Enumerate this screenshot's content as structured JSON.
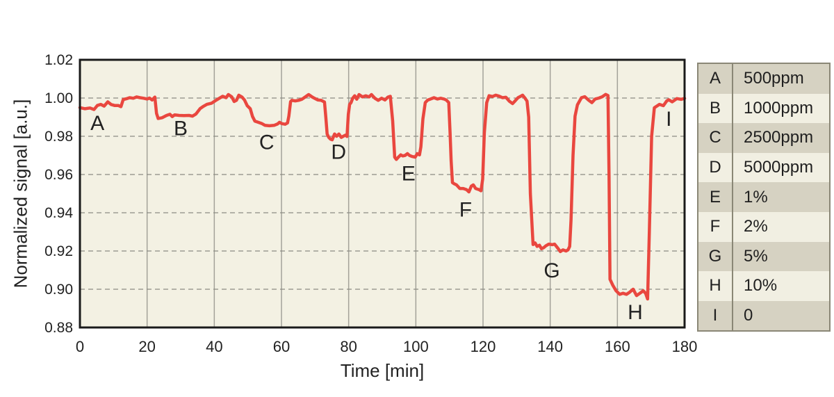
{
  "chart_data": {
    "type": "line",
    "title": "",
    "xlabel": "Time [min]",
    "ylabel": "Normalized signal [a.u.]",
    "xlim": [
      0,
      180
    ],
    "ylim": [
      0.88,
      1.02
    ],
    "xticks": [
      0,
      20,
      40,
      60,
      80,
      100,
      120,
      140,
      160,
      180
    ],
    "yticks": [
      "0.88",
      "0.90",
      "0.92",
      "0.94",
      "0.96",
      "0.98",
      "1.00",
      "1.02"
    ],
    "grid": {
      "vertical": "solid",
      "horizontal": "dashed"
    },
    "legend_position": "right-outside",
    "colors": {
      "plot_bg": "#f3f1e3",
      "line": "#e9473f",
      "grid_vertical": "#a3a299",
      "grid_horizontal": "#8b8b83",
      "axis": "#1a1a1a",
      "text": "#212121",
      "legend_row_dark": "#d6d2c2",
      "legend_row_light": "#f1efe2",
      "legend_border": "#8a8776"
    },
    "series": [
      {
        "name": "normalized-signal",
        "color": "#e9473f",
        "points": [
          [
            0,
            0.995
          ],
          [
            1.5,
            0.9944
          ],
          [
            3,
            0.9948
          ],
          [
            4.2,
            0.994
          ],
          [
            5.2,
            0.9961
          ],
          [
            6.2,
            0.9967
          ],
          [
            7.2,
            0.9958
          ],
          [
            8.3,
            0.998
          ],
          [
            9.3,
            0.9966
          ],
          [
            10.3,
            0.9961
          ],
          [
            11.4,
            0.9961
          ],
          [
            12.2,
            0.9955
          ],
          [
            12.9,
            0.9992
          ],
          [
            13.8,
            0.9996
          ],
          [
            14.8,
            1.0002
          ],
          [
            15.9,
            0.9999
          ],
          [
            16.9,
            1.0006
          ],
          [
            17.9,
            1.0002
          ],
          [
            19,
            0.9999
          ],
          [
            20,
            0.9995
          ],
          [
            20.7,
            1.0
          ],
          [
            21.5,
            0.999
          ],
          [
            22.3,
            1.0005
          ],
          [
            22.8,
            0.992
          ],
          [
            23.3,
            0.9893
          ],
          [
            24.5,
            0.9897
          ],
          [
            25.8,
            0.9909
          ],
          [
            26.8,
            0.9915
          ],
          [
            27.5,
            0.9903
          ],
          [
            28.2,
            0.9912
          ],
          [
            29.5,
            0.9909
          ],
          [
            31,
            0.9908
          ],
          [
            32.5,
            0.9909
          ],
          [
            33.5,
            0.9905
          ],
          [
            34.5,
            0.9916
          ],
          [
            35.8,
            0.9945
          ],
          [
            36.8,
            0.9957
          ],
          [
            37.8,
            0.9967
          ],
          [
            39.2,
            0.9973
          ],
          [
            40.5,
            0.9988
          ],
          [
            41.5,
            0.9999
          ],
          [
            42.5,
            1.0009
          ],
          [
            43.5,
            1.0002
          ],
          [
            44.2,
            1.0018
          ],
          [
            45.2,
            1.0006
          ],
          [
            45.9,
            0.9982
          ],
          [
            46.6,
            0.9988
          ],
          [
            47.3,
            1.0015
          ],
          [
            48.2,
            1.0006
          ],
          [
            49,
            0.999
          ],
          [
            49.8,
            0.996
          ],
          [
            50.7,
            0.9944
          ],
          [
            51.4,
            0.9903
          ],
          [
            52.1,
            0.9879
          ],
          [
            53.1,
            0.9873
          ],
          [
            54.1,
            0.9867
          ],
          [
            55.1,
            0.9857
          ],
          [
            56.4,
            0.9855
          ],
          [
            57.8,
            0.9857
          ],
          [
            58.8,
            0.9864
          ],
          [
            59.4,
            0.9873
          ],
          [
            60.1,
            0.9866
          ],
          [
            61.1,
            0.9863
          ],
          [
            61.8,
            0.987
          ],
          [
            62.2,
            0.9905
          ],
          [
            62.7,
            0.9981
          ],
          [
            63.1,
            0.9988
          ],
          [
            64.1,
            0.9985
          ],
          [
            65.1,
            0.9988
          ],
          [
            66.1,
            0.9994
          ],
          [
            67.1,
            1.0006
          ],
          [
            68.1,
            1.0018
          ],
          [
            69.1,
            1.0006
          ],
          [
            69.8,
            0.9999
          ],
          [
            70.8,
            0.999
          ],
          [
            71.8,
            0.9988
          ],
          [
            72.8,
            0.9979
          ],
          [
            73.2,
            0.99
          ],
          [
            73.6,
            0.9812
          ],
          [
            74.1,
            0.9794
          ],
          [
            74.6,
            0.9785
          ],
          [
            75.1,
            0.9782
          ],
          [
            75.8,
            0.9812
          ],
          [
            76.4,
            0.98
          ],
          [
            77.1,
            0.9812
          ],
          [
            77.8,
            0.9794
          ],
          [
            78.4,
            0.98
          ],
          [
            79.1,
            0.9806
          ],
          [
            79.5,
            0.9799
          ],
          [
            79.9,
            0.9915
          ],
          [
            80.3,
            0.9967
          ],
          [
            80.7,
            0.9976
          ],
          [
            81.2,
            0.9999
          ],
          [
            81.8,
            1.0012
          ],
          [
            82.4,
            0.9994
          ],
          [
            83.1,
            1.0018
          ],
          [
            84.1,
            1.0006
          ],
          [
            85.1,
            1.0012
          ],
          [
            86.1,
            1.0006
          ],
          [
            86.8,
            1.0018
          ],
          [
            87.8,
            0.9999
          ],
          [
            88.8,
            0.9988
          ],
          [
            89.8,
            0.9999
          ],
          [
            90.8,
            0.999
          ],
          [
            91.7,
            1.0005
          ],
          [
            92.4,
            1.0009
          ],
          [
            93.1,
            0.988
          ],
          [
            93.7,
            0.9691
          ],
          [
            94.2,
            0.9679
          ],
          [
            94.8,
            0.9691
          ],
          [
            95.5,
            0.9703
          ],
          [
            96.1,
            0.9697
          ],
          [
            96.8,
            0.97
          ],
          [
            97.5,
            0.9709
          ],
          [
            98.1,
            0.97
          ],
          [
            98.8,
            0.9695
          ],
          [
            99.8,
            0.9691
          ],
          [
            100.4,
            0.9709
          ],
          [
            101.1,
            0.9703
          ],
          [
            101.5,
            0.9745
          ],
          [
            102.1,
            0.9891
          ],
          [
            102.8,
            0.9976
          ],
          [
            103.5,
            0.9989
          ],
          [
            104.4,
            0.9995
          ],
          [
            105.4,
            1.0002
          ],
          [
            106.4,
            0.9995
          ],
          [
            107.4,
            0.9999
          ],
          [
            108.4,
            0.9995
          ],
          [
            109.1,
            0.9989
          ],
          [
            109.8,
            0.9976
          ],
          [
            110.2,
            0.9818
          ],
          [
            110.5,
            0.9673
          ],
          [
            110.9,
            0.9558
          ],
          [
            111.4,
            0.9552
          ],
          [
            112.1,
            0.9546
          ],
          [
            113.1,
            0.9527
          ],
          [
            114.1,
            0.9527
          ],
          [
            115.1,
            0.9521
          ],
          [
            115.8,
            0.9509
          ],
          [
            116.5,
            0.9539
          ],
          [
            117.1,
            0.9546
          ],
          [
            117.8,
            0.9527
          ],
          [
            118.8,
            0.9521
          ],
          [
            119.4,
            0.9515
          ],
          [
            119.9,
            0.9576
          ],
          [
            120.4,
            0.9818
          ],
          [
            121.1,
            0.9976
          ],
          [
            121.8,
            1.0012
          ],
          [
            122.8,
            1.0008
          ],
          [
            123.8,
            1.0015
          ],
          [
            124.8,
            1.001
          ],
          [
            125.8,
            1.0002
          ],
          [
            126.8,
            1.0004
          ],
          [
            127.8,
            0.9984
          ],
          [
            128.8,
            0.9971
          ],
          [
            129.5,
            0.9984
          ],
          [
            130.4,
            1.0002
          ],
          [
            131.1,
            1.0008
          ],
          [
            131.8,
            1.0015
          ],
          [
            132.4,
            1.0002
          ],
          [
            133.1,
            0.9984
          ],
          [
            133.6,
            0.99
          ],
          [
            134.1,
            0.95
          ],
          [
            134.9,
            0.9234
          ],
          [
            135.5,
            0.9242
          ],
          [
            136.1,
            0.9224
          ],
          [
            136.8,
            0.923
          ],
          [
            137.4,
            0.9212
          ],
          [
            138.1,
            0.9218
          ],
          [
            138.7,
            0.9227
          ],
          [
            139.6,
            0.9236
          ],
          [
            140.6,
            0.9233
          ],
          [
            141.3,
            0.9236
          ],
          [
            142.3,
            0.9214
          ],
          [
            143,
            0.9197
          ],
          [
            143.8,
            0.9206
          ],
          [
            144.7,
            0.92
          ],
          [
            145.3,
            0.9206
          ],
          [
            145.8,
            0.9224
          ],
          [
            146.2,
            0.936
          ],
          [
            146.8,
            0.97
          ],
          [
            147.4,
            0.9905
          ],
          [
            148.1,
            0.9964
          ],
          [
            149.3,
            1.0002
          ],
          [
            150.3,
            1.0007
          ],
          [
            151.4,
            0.9989
          ],
          [
            152.4,
            0.9976
          ],
          [
            153.4,
            0.9995
          ],
          [
            154.5,
            1.0
          ],
          [
            155.5,
            1.0007
          ],
          [
            156.5,
            1.0019
          ],
          [
            157.2,
            1.0013
          ],
          [
            157.5,
            0.96
          ],
          [
            157.8,
            0.9052
          ],
          [
            158.6,
            0.9022
          ],
          [
            159.6,
            0.8992
          ],
          [
            160.7,
            0.8973
          ],
          [
            161.7,
            0.8979
          ],
          [
            162.7,
            0.8973
          ],
          [
            163.7,
            0.8985
          ],
          [
            164.7,
            0.9
          ],
          [
            165.7,
            0.8967
          ],
          [
            166.7,
            0.8979
          ],
          [
            167.7,
            0.8992
          ],
          [
            168.4,
            0.8979
          ],
          [
            169,
            0.8949
          ],
          [
            169.5,
            0.93
          ],
          [
            170.2,
            0.98
          ],
          [
            171,
            0.9949
          ],
          [
            172.5,
            0.9967
          ],
          [
            173.7,
            0.996
          ],
          [
            174.7,
            0.9985
          ],
          [
            175.3,
            0.9991
          ],
          [
            176.3,
            0.998
          ],
          [
            177.7,
            0.9997
          ],
          [
            179,
            0.9993
          ],
          [
            180,
            0.9998
          ]
        ]
      }
    ],
    "annotations": [
      {
        "label": "A",
        "x": 5.2,
        "y": 0.9872
      },
      {
        "label": "B",
        "x": 30,
        "y": 0.9845
      },
      {
        "label": "C",
        "x": 55.6,
        "y": 0.9772
      },
      {
        "label": "D",
        "x": 77,
        "y": 0.9722
      },
      {
        "label": "E",
        "x": 97.8,
        "y": 0.961
      },
      {
        "label": "F",
        "x": 114.8,
        "y": 0.942
      },
      {
        "label": "G",
        "x": 140.5,
        "y": 0.9102
      },
      {
        "label": "H",
        "x": 165.3,
        "y": 0.8883
      },
      {
        "label": "I",
        "x": 175.3,
        "y": 0.9895
      }
    ],
    "legend_table": {
      "rows": [
        {
          "key": "A",
          "value": "500ppm"
        },
        {
          "key": "B",
          "value": "1000ppm"
        },
        {
          "key": "C",
          "value": "2500ppm"
        },
        {
          "key": "D",
          "value": "5000ppm"
        },
        {
          "key": "E",
          "value": "1%"
        },
        {
          "key": "F",
          "value": "2%"
        },
        {
          "key": "G",
          "value": "5%"
        },
        {
          "key": "H",
          "value": "10%"
        },
        {
          "key": "I",
          "value": "0"
        }
      ]
    }
  }
}
